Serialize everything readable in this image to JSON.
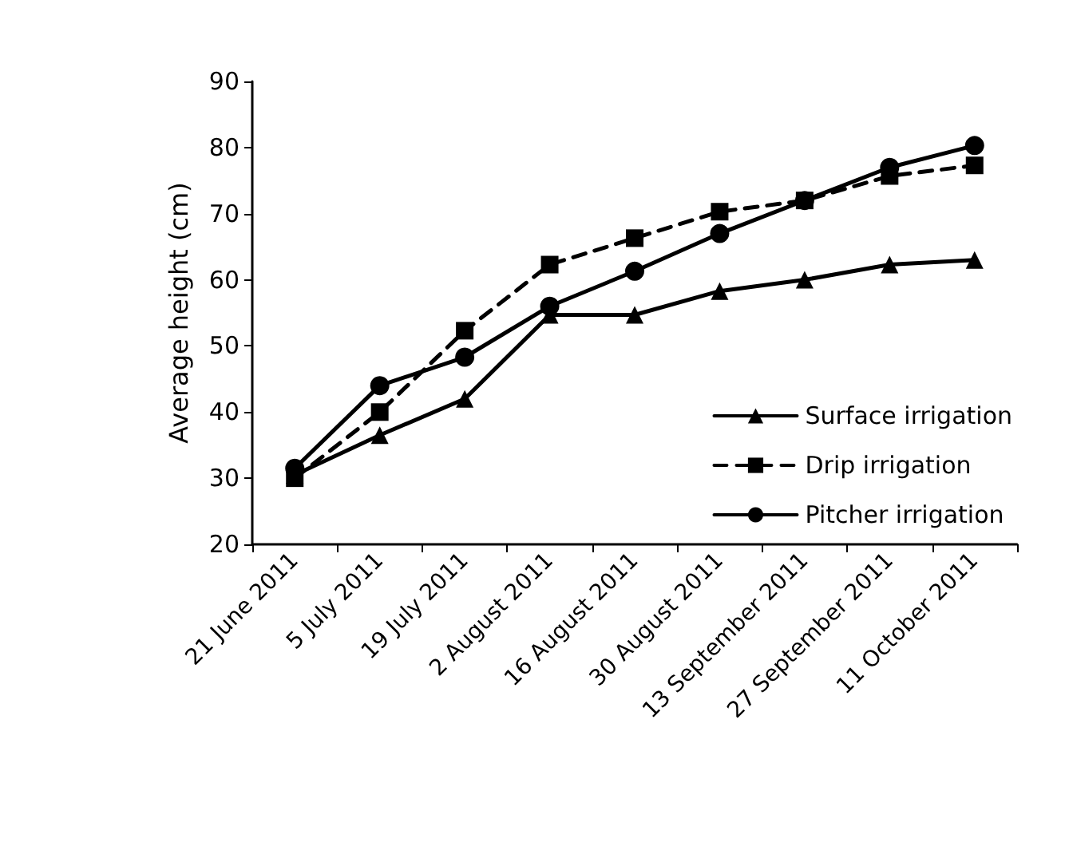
{
  "chart_data": {
    "type": "line",
    "ylabel": "Average height (cm)",
    "categories": [
      "21 June 2011",
      "5 July 2011",
      "19 July 2011",
      "2 August 2011",
      "16 August 2011",
      "30 August 2011",
      "13 September 2011",
      "27 September 2011",
      "11 October 2011"
    ],
    "series": [
      {
        "name": "Surface irrigation",
        "color": "#000000",
        "marker": "triangle",
        "line_style": "solid",
        "values": [
          30.5,
          36.5,
          42,
          54.7,
          54.7,
          58.3,
          60,
          62.3,
          63
        ]
      },
      {
        "name": "Drip irrigation",
        "color": "#000000",
        "marker": "square",
        "line_style": "dashed",
        "values": [
          30,
          40,
          52.3,
          62.3,
          66.3,
          70.3,
          72,
          75.7,
          77.3
        ]
      },
      {
        "name": "Pitcher irrigation",
        "color": "#000000",
        "marker": "circle",
        "line_style": "solid",
        "values": [
          31.5,
          44,
          48.3,
          56,
          61.3,
          67,
          72,
          77,
          80.3
        ]
      }
    ],
    "ylim": [
      20,
      90
    ],
    "yticks": [
      20,
      30,
      40,
      50,
      60,
      70,
      80,
      90
    ],
    "grid": false,
    "legend": "right"
  }
}
